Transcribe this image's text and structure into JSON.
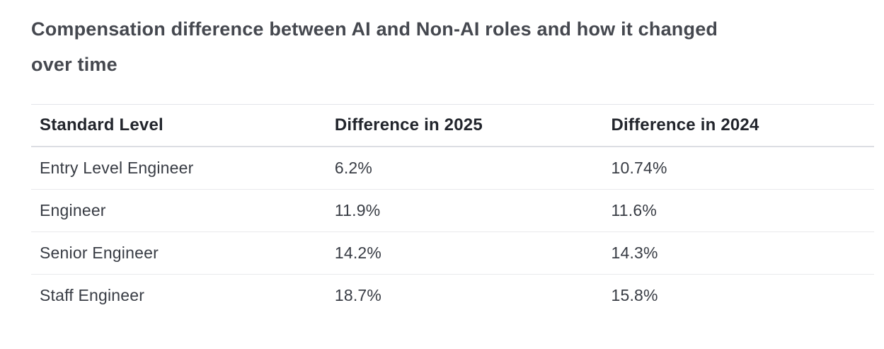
{
  "page": {
    "title_line1": "Compensation difference between AI and Non-AI roles and how it changed",
    "title_line2": "over time"
  },
  "table": {
    "columns": [
      "Standard Level",
      "Difference in 2025",
      "Difference in 2024"
    ],
    "rows": [
      [
        "Entry Level Engineer",
        "6.2%",
        "10.74%"
      ],
      [
        "Engineer",
        "11.9%",
        "11.6%"
      ],
      [
        "Senior Engineer",
        "14.2%",
        "14.3%"
      ],
      [
        "Staff Engineer",
        "18.7%",
        "15.8%"
      ]
    ]
  },
  "chart_data": {
    "type": "table",
    "title": "Compensation difference between AI and Non-AI roles and how it changed over time",
    "columns": [
      "Standard Level",
      "Difference in 2025",
      "Difference in 2024"
    ],
    "categories": [
      "Entry Level Engineer",
      "Engineer",
      "Senior Engineer",
      "Staff Engineer"
    ],
    "series": [
      {
        "name": "Difference in 2025",
        "values": [
          6.2,
          11.9,
          14.2,
          18.7
        ],
        "unit": "%"
      },
      {
        "name": "Difference in 2024",
        "values": [
          10.74,
          11.6,
          14.3,
          15.8
        ],
        "unit": "%"
      }
    ]
  },
  "colors": {
    "background": "#ffffff",
    "title_text": "#45484f",
    "header_text": "#22252c",
    "body_text": "#383c44",
    "table_top_border": "#e3e5e9",
    "header_separator": "#dcdee3",
    "row_separator": "#e9eaec"
  }
}
